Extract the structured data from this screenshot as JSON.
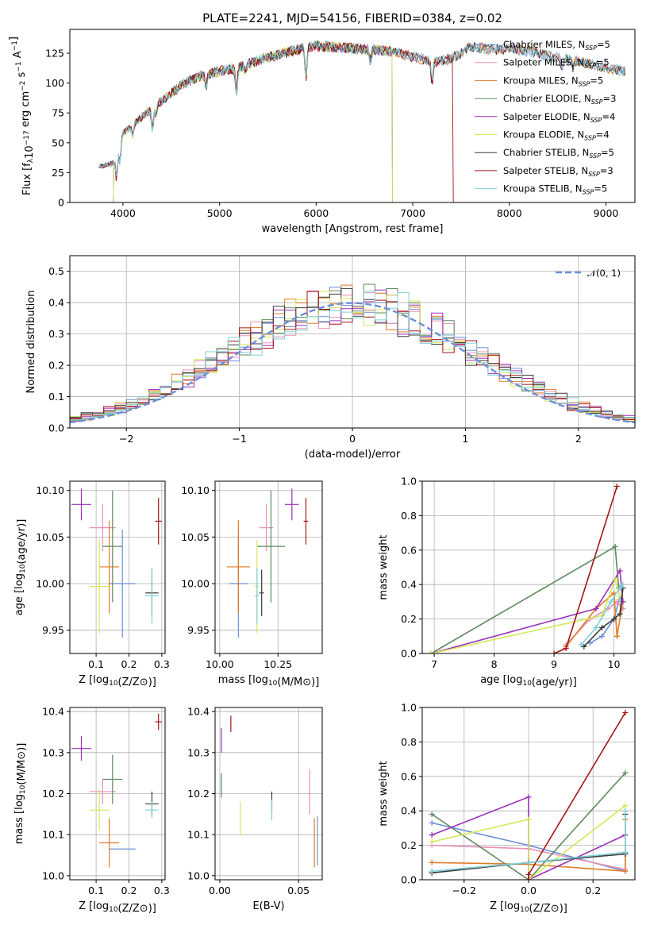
{
  "figure_title": "PLATE=2241, MJD=54156, FIBERID=0384, z=0.02",
  "colors": {
    "Chabrier MILES": "#6c8fd9",
    "Salpeter MILES": "#e88fb8",
    "Kroupa MILES": "#e07b25",
    "Chabrier ELODIE": "#5e8a5e",
    "Salpeter ELODIE": "#9a2fb8",
    "Kroupa ELODIE": "#d6e85a",
    "Chabrier STELIB": "#3a3a3a",
    "Salpeter STELIB": "#a31515",
    "Kroupa STELIB": "#7fd0d8",
    "gaussian": "#6c8fd9"
  },
  "chart_data": [
    {
      "id": "spectrum",
      "type": "line",
      "title": "PLATE=2241, MJD=54156, FIBERID=0384, z=0.02",
      "xlabel": "wavelength [Angstrom, rest frame]",
      "ylabel": "Flux [f_λ10^-17 erg cm^-2 s^-1 A^-1]",
      "xlim": [
        3450,
        9300
      ],
      "ylim": [
        0,
        145
      ],
      "xticks": [
        4000,
        5000,
        6000,
        7000,
        8000,
        9000
      ],
      "yticks": [
        0,
        25,
        50,
        75,
        100,
        125
      ],
      "continuum": {
        "x": [
          3750,
          3900,
          4000,
          4200,
          4400,
          4600,
          4800,
          5000,
          5200,
          5400,
          5600,
          5800,
          6000,
          6200,
          6400,
          6600,
          6800,
          7000,
          7200,
          7400,
          7600,
          7800,
          8000,
          8200,
          8400,
          8600,
          8800,
          9000,
          9200
        ],
        "y": [
          30,
          33,
          58,
          72,
          85,
          98,
          106,
          110,
          113,
          119,
          124,
          128,
          131,
          130,
          129,
          128,
          126,
          122,
          118,
          120,
          131,
          128,
          129,
          127,
          123,
          120,
          117,
          113,
          110
        ]
      },
      "absorption_lines": [
        {
          "x": 3934,
          "depth": 22
        },
        {
          "x": 3969,
          "depth": 16
        },
        {
          "x": 4102,
          "depth": 10
        },
        {
          "x": 4305,
          "depth": 18
        },
        {
          "x": 4340,
          "depth": 8
        },
        {
          "x": 4861,
          "depth": 10
        },
        {
          "x": 5175,
          "depth": 20
        },
        {
          "x": 5270,
          "depth": 6
        },
        {
          "x": 5895,
          "depth": 25
        },
        {
          "x": 6563,
          "depth": 10
        },
        {
          "x": 7200,
          "depth": 18
        },
        {
          "x": 8542,
          "depth": 8
        },
        {
          "x": 8662,
          "depth": 7
        }
      ],
      "series": [
        {
          "name": "Chabrier MILES, N_SSP=5",
          "label": "Chabrier MILES, N",
          "sub": "SSP",
          "count": "=5",
          "xmax": 9200
        },
        {
          "name": "Salpeter MILES, N_SSP=5",
          "label": "Salpeter MILES, N",
          "sub": "SSP",
          "count": "=5",
          "xmax": 9200
        },
        {
          "name": "Kroupa MILES, N_SSP=5",
          "label": "Kroupa MILES, N",
          "sub": "SSP",
          "count": "=5",
          "xmax": 9200
        },
        {
          "name": "Chabrier ELODIE, N_SSP=3",
          "label": "Chabrier ELODIE, N",
          "sub": "SSP",
          "count": "=3",
          "xmax": 6790,
          "xmin": 3900
        },
        {
          "name": "Salpeter ELODIE, N_SSP=4",
          "label": "Salpeter ELODIE, N",
          "sub": "SSP",
          "count": "=4",
          "xmax": 6790,
          "xmin": 3900
        },
        {
          "name": "Kroupa ELODIE, N_SSP=4",
          "label": "Kroupa ELODIE, N",
          "sub": "SSP",
          "count": "=4",
          "xmax": 6790,
          "xmin": 3900
        },
        {
          "name": "Chabrier STELIB, N_SSP=5",
          "label": "Chabrier STELIB, N",
          "sub": "SSP",
          "count": "=5",
          "xmax": 9200
        },
        {
          "name": "Salpeter STELIB, N_SSP=3",
          "label": "Salpeter STELIB, N",
          "sub": "SSP",
          "count": "=3",
          "xmax": 7420
        },
        {
          "name": "Kroupa STELIB, N_SSP=5",
          "label": "Kroupa STELIB, N",
          "sub": "SSP",
          "count": "=5",
          "xmax": 9200
        }
      ]
    },
    {
      "id": "residuals",
      "type": "line",
      "xlabel": "(data-model)/error",
      "ylabel": "Normed distribution",
      "xlim": [
        -2.5,
        2.5
      ],
      "ylim": [
        0,
        0.55
      ],
      "xticks": [
        -2,
        -1,
        0,
        1,
        2
      ],
      "xticklabels": [
        "−2",
        "−1",
        "0",
        "1",
        "2"
      ],
      "yticks": [
        0.0,
        0.1,
        0.2,
        0.3,
        0.4,
        0.5
      ],
      "legend": "𝒩(0, 1)",
      "bin_width": 0.1,
      "bin_start": -2.5
    },
    {
      "id": "age_vs_Z",
      "type": "scatter",
      "xlabel": "Z [log10(Z/Z⊙)]",
      "ylabel": "age  [log10(age/yr)]",
      "xlim": [
        0.02,
        0.31
      ],
      "ylim": [
        9.925,
        10.11
      ],
      "xticks": [
        0.1,
        0.2,
        0.3
      ],
      "yticks": [
        9.95,
        10.0,
        10.05,
        10.1
      ],
      "points": [
        {
          "model": "Chabrier MILES",
          "x": 0.18,
          "y": 10.0,
          "xerr": 0.04,
          "yerr": 0.058
        },
        {
          "model": "Salpeter MILES",
          "x": 0.12,
          "y": 10.06,
          "xerr": 0.04,
          "yerr": 0.025
        },
        {
          "model": "Kroupa MILES",
          "x": 0.14,
          "y": 10.018,
          "xerr": 0.03,
          "yerr": 0.05
        },
        {
          "model": "Chabrier ELODIE",
          "x": 0.15,
          "y": 10.04,
          "xerr": 0.03,
          "yerr": 0.06
        },
        {
          "model": "Salpeter ELODIE",
          "x": 0.055,
          "y": 10.085,
          "xerr": 0.03,
          "yerr": 0.017
        },
        {
          "model": "Kroupa ELODIE",
          "x": 0.11,
          "y": 9.997,
          "xerr": 0.03,
          "yerr": 0.05
        },
        {
          "model": "Chabrier STELIB",
          "x": 0.27,
          "y": 9.99,
          "xerr": 0.02,
          "yerr": 0.025
        },
        {
          "model": "Salpeter STELIB",
          "x": 0.29,
          "y": 10.067,
          "xerr": 0.01,
          "yerr": 0.025
        },
        {
          "model": "Kroupa STELIB",
          "x": 0.27,
          "y": 9.987,
          "xerr": 0.02,
          "yerr": 0.03
        }
      ]
    },
    {
      "id": "age_vs_mass",
      "type": "scatter",
      "xlabel": "mass [log10(M/M⊙)]",
      "ylabel": "",
      "xlim": [
        9.98,
        10.44
      ],
      "ylim": [
        9.925,
        10.11
      ],
      "xticks": [
        10.0,
        10.25
      ],
      "xticklabels": [
        "10.00",
        "10.25"
      ],
      "yticks": [
        9.95,
        10.0,
        10.05,
        10.1
      ],
      "points": [
        {
          "model": "Chabrier MILES",
          "x": 10.08,
          "y": 10.0,
          "xerr": 0.04,
          "yerr": 0.058
        },
        {
          "model": "Salpeter MILES",
          "x": 10.2,
          "y": 10.06,
          "xerr": 0.03,
          "yerr": 0.025
        },
        {
          "model": "Kroupa MILES",
          "x": 10.08,
          "y": 10.018,
          "xerr": 0.05,
          "yerr": 0.05
        },
        {
          "model": "Chabrier ELODIE",
          "x": 10.22,
          "y": 10.04,
          "xerr": 0.06,
          "yerr": 0.06
        },
        {
          "model": "Salpeter ELODIE",
          "x": 10.31,
          "y": 10.085,
          "xerr": 0.03,
          "yerr": 0.017
        },
        {
          "model": "Kroupa ELODIE",
          "x": 10.16,
          "y": 9.997,
          "xerr": 0.01,
          "yerr": 0.05
        },
        {
          "model": "Chabrier STELIB",
          "x": 10.18,
          "y": 9.99,
          "xerr": 0.01,
          "yerr": 0.025
        },
        {
          "model": "Salpeter STELIB",
          "x": 10.37,
          "y": 10.067,
          "xerr": 0.01,
          "yerr": 0.025
        },
        {
          "model": "Kroupa STELIB",
          "x": 10.16,
          "y": 9.987,
          "xerr": 0.01,
          "yerr": 0.03
        }
      ]
    },
    {
      "id": "weight_vs_age",
      "type": "line",
      "xlabel": "age  [log10(age/yr)]",
      "ylabel": "mass weight",
      "xlim": [
        6.8,
        10.35
      ],
      "ylim": [
        0,
        1
      ],
      "xticks": [
        7,
        8,
        9,
        10
      ],
      "yticks": [
        0.0,
        0.2,
        0.4,
        0.6,
        0.8,
        1.0
      ],
      "series": [
        {
          "model": "Chabrier MILES",
          "x": [
            9.6,
            9.8,
            10.0,
            10.1,
            10.15
          ],
          "y": [
            0.06,
            0.1,
            0.2,
            0.33,
            0.3
          ]
        },
        {
          "model": "Salpeter MILES",
          "x": [
            9.2,
            9.6,
            9.9,
            10.05,
            10.15
          ],
          "y": [
            0.05,
            0.2,
            0.26,
            0.3,
            0.26
          ]
        },
        {
          "model": "Kroupa MILES",
          "x": [
            9.2,
            9.7,
            10.0,
            10.05,
            10.15
          ],
          "y": [
            0.04,
            0.26,
            0.35,
            0.1,
            0.3
          ]
        },
        {
          "model": "Chabrier ELODIE",
          "x": [
            6.95,
            10.02,
            10.08
          ],
          "y": [
            0.0,
            0.62,
            0.38
          ]
        },
        {
          "model": "Salpeter ELODIE",
          "x": [
            6.95,
            9.7,
            10.1,
            10.15
          ],
          "y": [
            0.0,
            0.26,
            0.48,
            0.3
          ]
        },
        {
          "model": "Kroupa ELODIE",
          "x": [
            6.95,
            9.8,
            10.02,
            10.1
          ],
          "y": [
            0.0,
            0.22,
            0.43,
            0.33
          ]
        },
        {
          "model": "Chabrier STELIB",
          "x": [
            9.5,
            9.8,
            10.0,
            10.1,
            10.15
          ],
          "y": [
            0.04,
            0.15,
            0.2,
            0.23,
            0.38
          ]
        },
        {
          "model": "Salpeter STELIB",
          "x": [
            9.0,
            9.2,
            10.05
          ],
          "y": [
            0.0,
            0.03,
            0.97
          ]
        },
        {
          "model": "Kroupa STELIB",
          "x": [
            9.45,
            9.7,
            9.95,
            10.1,
            10.15
          ],
          "y": [
            0.05,
            0.15,
            0.3,
            0.38,
            0.4
          ]
        }
      ]
    },
    {
      "id": "mass_vs_Z",
      "type": "scatter",
      "xlabel": "Z [log10(Z/Z⊙)]",
      "ylabel": "mass [log10(M/M⊙)]",
      "xlim": [
        0.02,
        0.31
      ],
      "ylim": [
        9.99,
        10.41
      ],
      "xticks": [
        0.1,
        0.2,
        0.3
      ],
      "yticks": [
        10.0,
        10.1,
        10.2,
        10.3,
        10.4
      ],
      "points": [
        {
          "model": "Chabrier MILES",
          "x": 0.18,
          "y": 10.065,
          "xerr": 0.04,
          "yerr": 0.0
        },
        {
          "model": "Salpeter MILES",
          "x": 0.12,
          "y": 10.205,
          "xerr": 0.04,
          "yerr": 0.03
        },
        {
          "model": "Kroupa MILES",
          "x": 0.14,
          "y": 10.08,
          "xerr": 0.03,
          "yerr": 0.06
        },
        {
          "model": "Chabrier ELODIE",
          "x": 0.15,
          "y": 10.235,
          "xerr": 0.03,
          "yerr": 0.06
        },
        {
          "model": "Salpeter ELODIE",
          "x": 0.055,
          "y": 10.31,
          "xerr": 0.03,
          "yerr": 0.03
        },
        {
          "model": "Kroupa ELODIE",
          "x": 0.11,
          "y": 10.16,
          "xerr": 0.03,
          "yerr": 0.05
        },
        {
          "model": "Chabrier STELIB",
          "x": 0.27,
          "y": 10.175,
          "xerr": 0.02,
          "yerr": 0.03
        },
        {
          "model": "Salpeter STELIB",
          "x": 0.29,
          "y": 10.375,
          "xerr": 0.01,
          "yerr": 0.02
        },
        {
          "model": "Kroupa STELIB",
          "x": 0.27,
          "y": 10.16,
          "xerr": 0.02,
          "yerr": 0.02
        }
      ]
    },
    {
      "id": "mass_vs_ebv",
      "type": "scatter",
      "xlabel": "E(B-V)",
      "ylabel": "",
      "xlim": [
        -0.003,
        0.065
      ],
      "ylim": [
        9.99,
        10.41
      ],
      "xticks": [
        0.0,
        0.05
      ],
      "xticklabels": [
        "0.00",
        "0.05"
      ],
      "yticks": [
        10.0,
        10.1,
        10.2,
        10.3,
        10.4
      ],
      "points": [
        {
          "model": "Chabrier MILES",
          "x": 0.062,
          "y": 10.085,
          "xerr": 0.0,
          "yerr": 0.06
        },
        {
          "model": "Salpeter MILES",
          "x": 0.057,
          "y": 10.205,
          "xerr": 0.0,
          "yerr": 0.055
        },
        {
          "model": "Kroupa MILES",
          "x": 0.06,
          "y": 10.08,
          "xerr": 0.0,
          "yerr": 0.06
        },
        {
          "model": "Chabrier ELODIE",
          "x": 0.001,
          "y": 10.22,
          "xerr": 0.0,
          "yerr": 0.03
        },
        {
          "model": "Salpeter ELODIE",
          "x": 0.001,
          "y": 10.33,
          "xerr": 0.0,
          "yerr": 0.03
        },
        {
          "model": "Kroupa ELODIE",
          "x": 0.013,
          "y": 10.14,
          "xerr": 0.0,
          "yerr": 0.04
        },
        {
          "model": "Chabrier STELIB",
          "x": 0.033,
          "y": 10.18,
          "xerr": 0.0,
          "yerr": 0.025
        },
        {
          "model": "Salpeter STELIB",
          "x": 0.007,
          "y": 10.37,
          "xerr": 0.0,
          "yerr": 0.02
        },
        {
          "model": "Kroupa STELIB",
          "x": 0.033,
          "y": 10.16,
          "xerr": 0.0,
          "yerr": 0.025
        }
      ]
    },
    {
      "id": "weight_vs_Z",
      "type": "line",
      "xlabel": "Z [log10(Z/Z⊙)]",
      "ylabel": "mass weight",
      "xlim": [
        -0.33,
        0.33
      ],
      "ylim": [
        0,
        1
      ],
      "xticks": [
        -0.2,
        0.0,
        0.2
      ],
      "xticklabels": [
        "−0.2",
        "0.0",
        "0.2"
      ],
      "yticks": [
        0.0,
        0.2,
        0.4,
        0.6,
        0.8,
        1.0
      ],
      "series": [
        {
          "model": "Chabrier MILES",
          "x": [
            -0.3,
            0.0,
            0.3,
            0.3
          ],
          "y": [
            0.33,
            0.2,
            0.05,
            0.15
          ]
        },
        {
          "model": "Salpeter MILES",
          "x": [
            -0.3,
            0.0,
            0.3,
            0.3
          ],
          "y": [
            0.2,
            0.18,
            0.06,
            0.4
          ]
        },
        {
          "model": "Kroupa MILES",
          "x": [
            -0.3,
            0.0,
            0.3,
            0.3
          ],
          "y": [
            0.1,
            0.09,
            0.05,
            0.35
          ]
        },
        {
          "model": "Chabrier ELODIE",
          "x": [
            -0.3,
            0.0,
            0.3
          ],
          "y": [
            0.38,
            0.0,
            0.62
          ]
        },
        {
          "model": "Salpeter ELODIE",
          "x": [
            -0.3,
            0.0,
            0.0,
            0.3
          ],
          "y": [
            0.26,
            0.48,
            0.0,
            0.26
          ]
        },
        {
          "model": "Kroupa ELODIE",
          "x": [
            -0.3,
            0.0,
            0.0,
            0.3
          ],
          "y": [
            0.22,
            0.35,
            0.0,
            0.43
          ]
        },
        {
          "model": "Chabrier STELIB",
          "x": [
            -0.3,
            0.0,
            0.3,
            0.3
          ],
          "y": [
            0.04,
            0.1,
            0.15,
            0.38
          ]
        },
        {
          "model": "Salpeter STELIB",
          "x": [
            0.0,
            0.0,
            0.3
          ],
          "y": [
            0.0,
            0.03,
            0.97
          ]
        },
        {
          "model": "Kroupa STELIB",
          "x": [
            -0.3,
            0.0,
            0.3,
            0.3
          ],
          "y": [
            0.05,
            0.1,
            0.16,
            0.4
          ]
        }
      ]
    }
  ]
}
